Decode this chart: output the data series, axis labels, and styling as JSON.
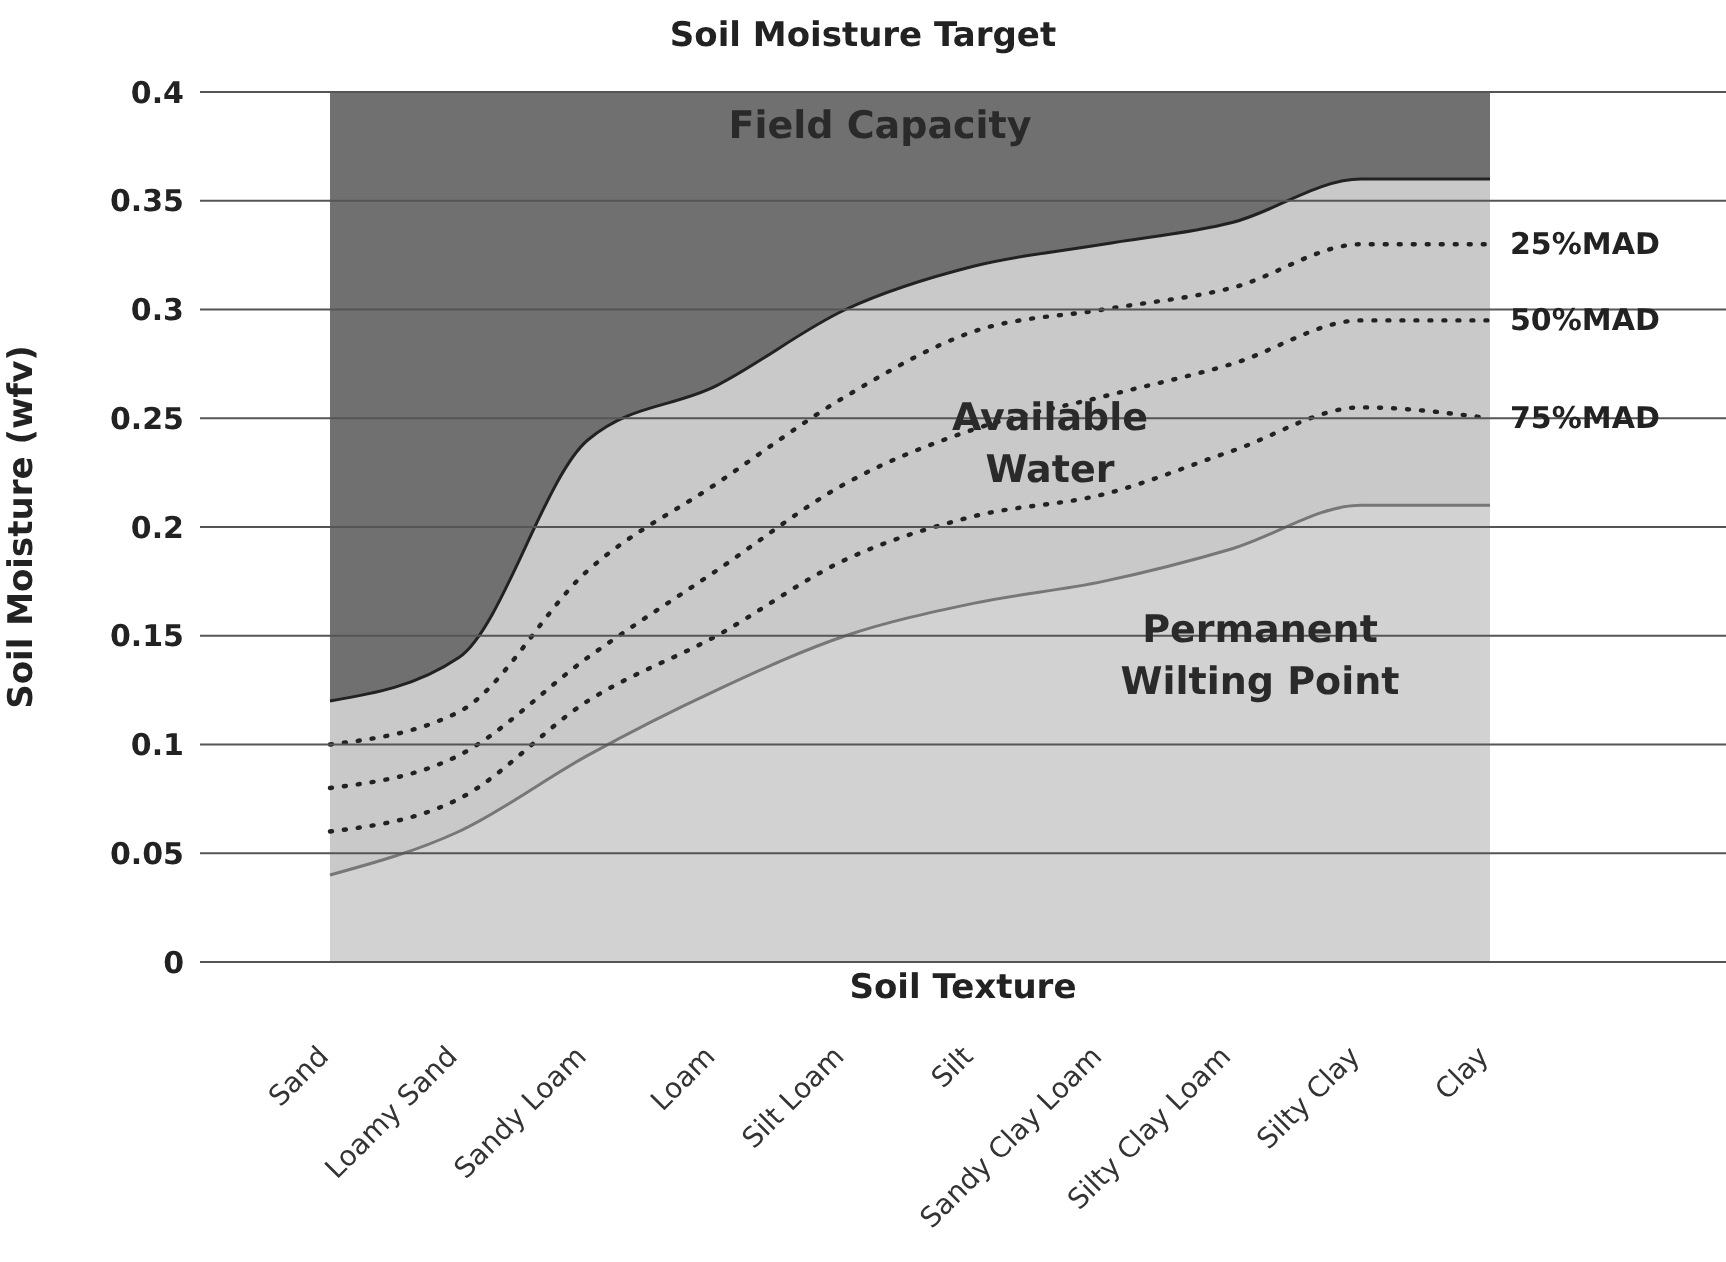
{
  "chart_data": {
    "type": "area",
    "title": "Soil Moisture Target",
    "xlabel": "Soil Texture",
    "ylabel": "Soil Moisture (wfv)",
    "categories": [
      "Sand",
      "Loamy Sand",
      "Sandy Loam",
      "Loam",
      "Silt Loam",
      "Silt",
      "Sandy Clay Loam",
      "Silty Clay Loam",
      "Silty Clay",
      "Clay"
    ],
    "series": [
      {
        "color": "#c9c9c9",
        "values": [
          0.12,
          0.14,
          0.24,
          0.265,
          0.3,
          0.32,
          0.33,
          0.34,
          0.36,
          0.36
        ]
      },
      {
        "color": "#d2d2d2",
        "values": [
          0.04,
          0.06,
          0.095,
          0.125,
          0.15,
          0.165,
          0.175,
          0.19,
          0.21,
          0.21
        ]
      },
      {
        "type": "line",
        "name": "25%MAD",
        "color": "#222222",
        "line_style": "dotted",
        "values": [
          0.1,
          0.115,
          0.18,
          0.22,
          0.26,
          0.29,
          0.3,
          0.31,
          0.33,
          0.33
        ]
      },
      {
        "type": "line",
        "name": "50%MAD",
        "color": "#222222",
        "line_style": "dotted",
        "values": [
          0.08,
          0.095,
          0.14,
          0.18,
          0.22,
          0.245,
          0.26,
          0.275,
          0.295,
          0.295
        ]
      },
      {
        "type": "line",
        "name": "75%MAD",
        "color": "#222222",
        "line_style": "dotted",
        "values": [
          0.06,
          0.075,
          0.12,
          0.15,
          0.185,
          0.205,
          0.215,
          0.235,
          0.255,
          0.25
        ]
      }
    ],
    "bands": [
      {
        "axis": "y",
        "from": 0,
        "to": 0.4,
        "color": "#707070"
      }
    ],
    "annotations": [
      "Field Capacity",
      "Available Water",
      "Permanent Wilting Point"
    ],
    "ylim": [
      0,
      0.4
    ],
    "yticks": [
      0,
      0.05,
      0.1,
      0.15,
      0.2,
      0.25,
      0.3,
      0.35,
      0.4
    ],
    "grid": "y",
    "legend": false
  }
}
